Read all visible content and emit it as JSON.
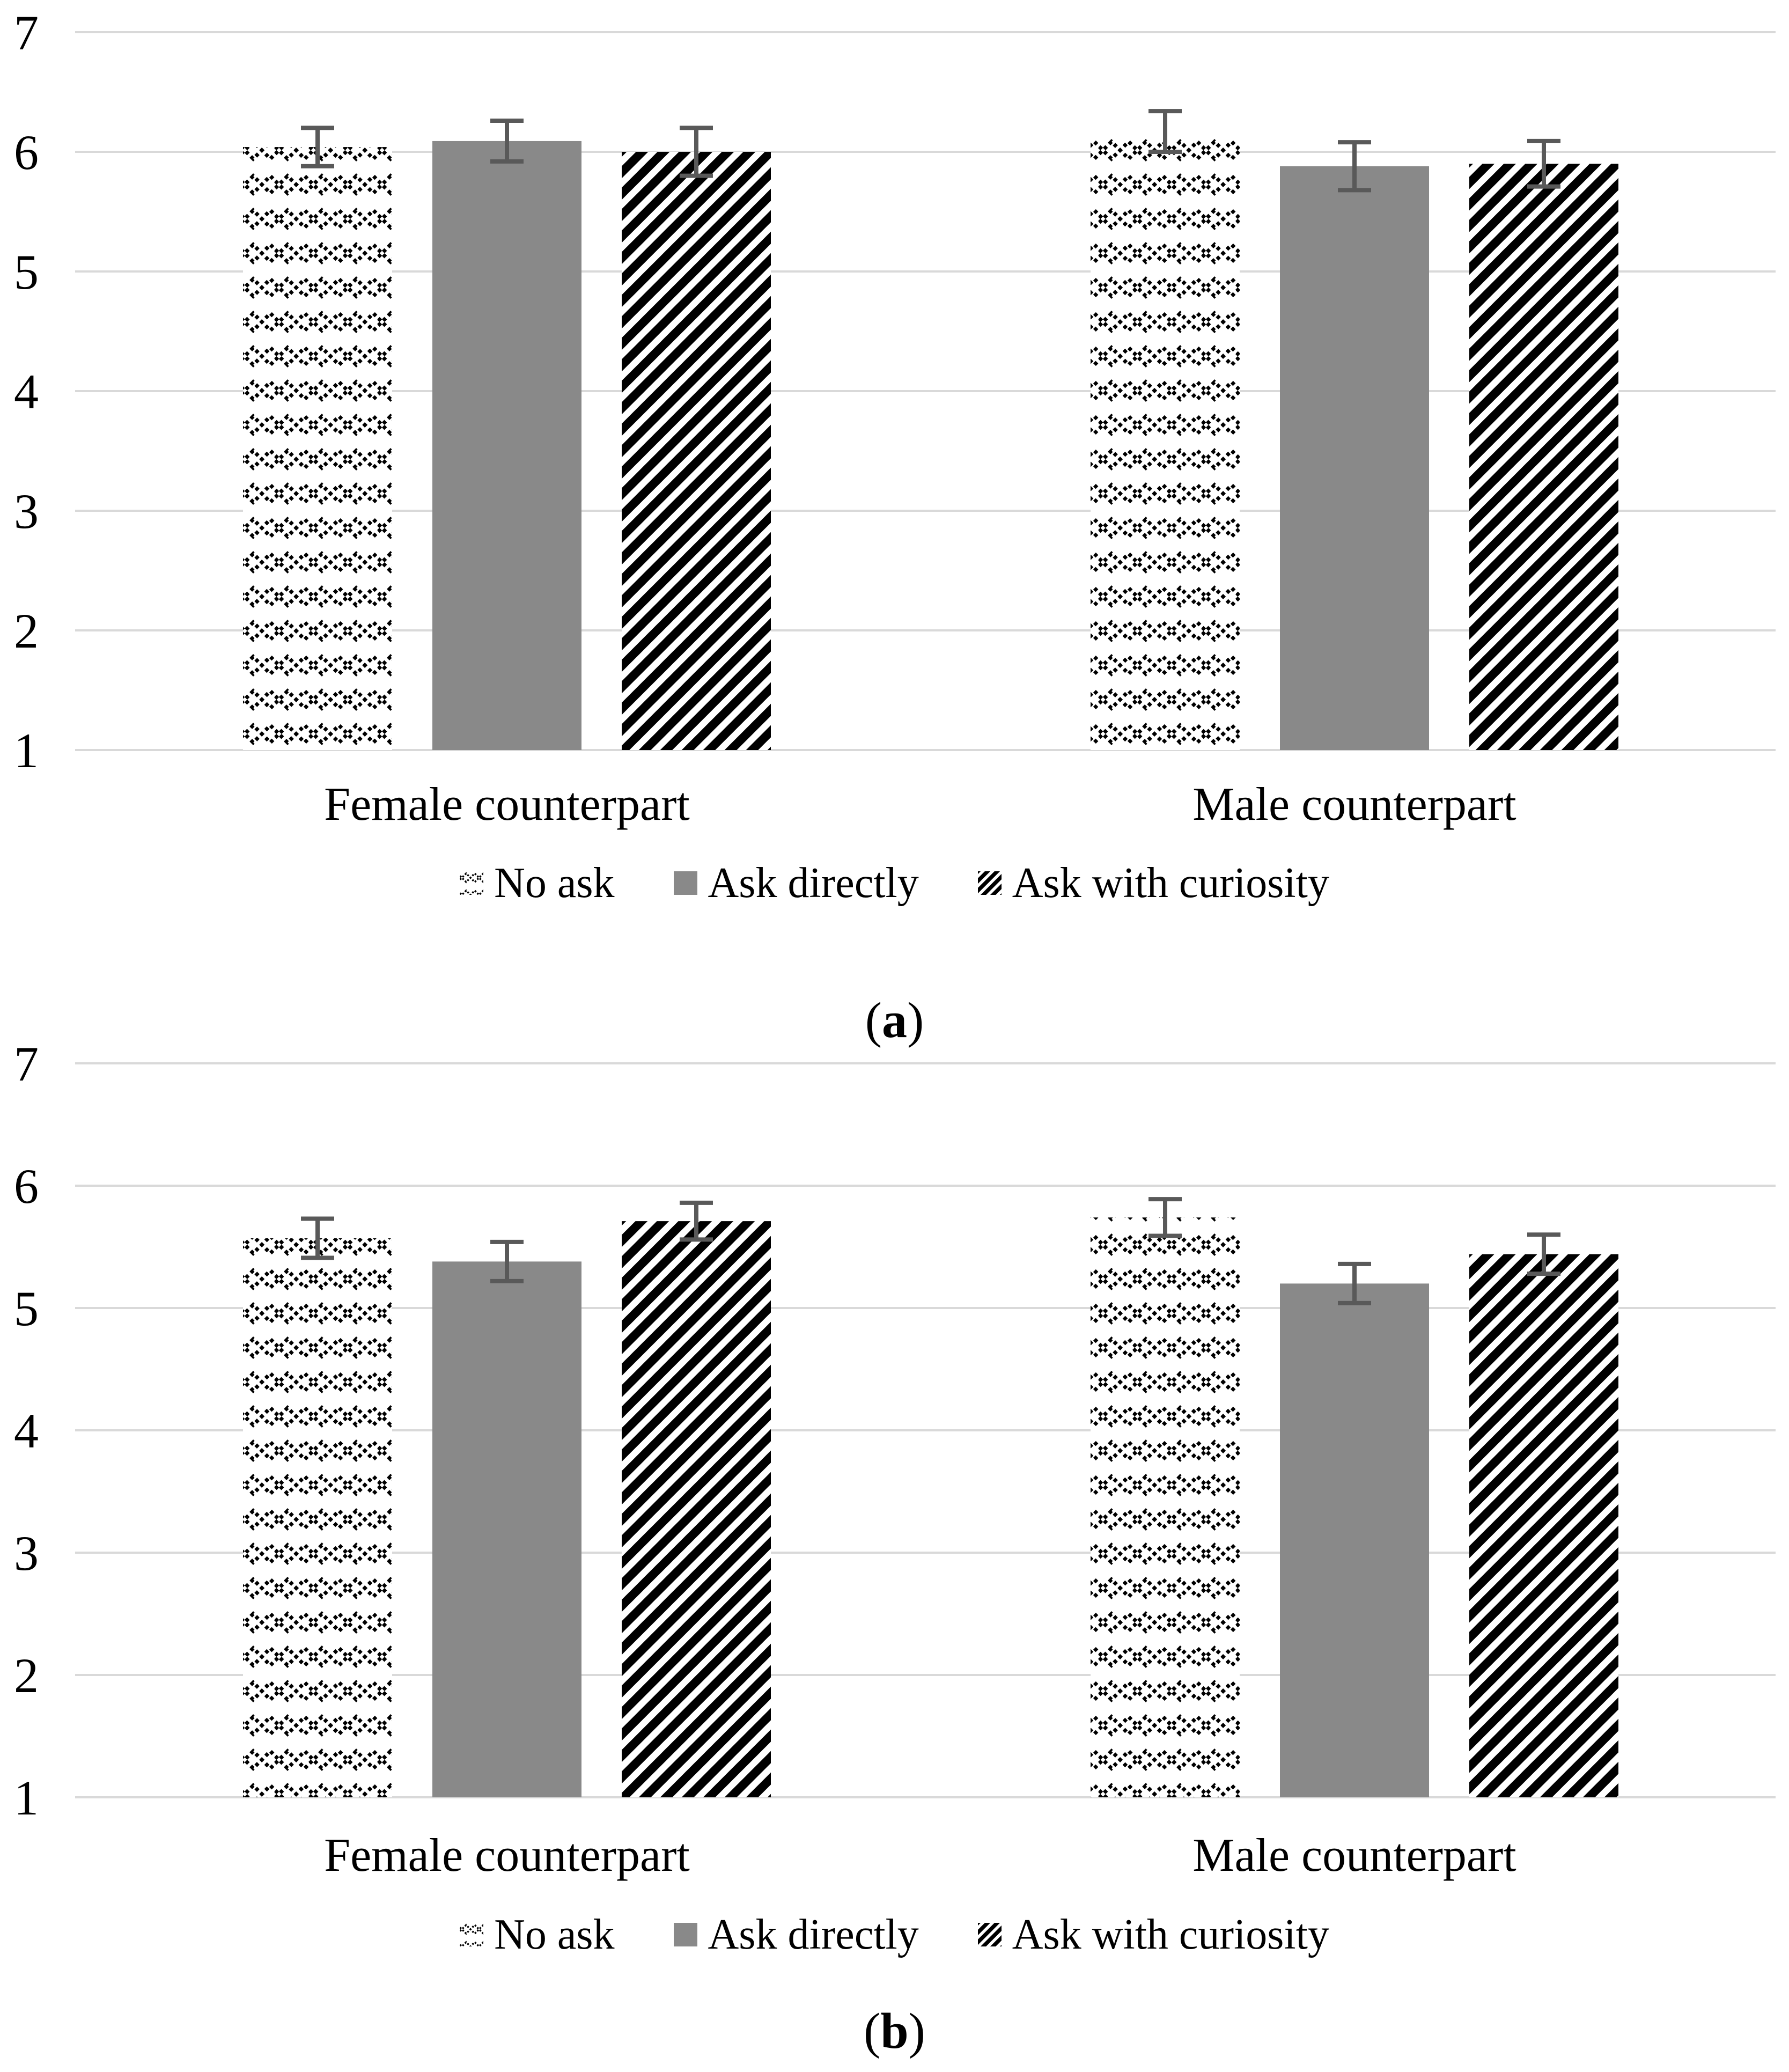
{
  "figure": {
    "background": "#ffffff",
    "colors": {
      "solid_bar": "#898989",
      "error_bar": "#595959",
      "gridline": "#d9d9d9",
      "text": "#000000",
      "pattern_ink": "#000000"
    },
    "legend": {
      "position": "bottom",
      "items": [
        {
          "label": "No ask",
          "swatch": "weave"
        },
        {
          "label": "Ask directly",
          "swatch": "solid"
        },
        {
          "label": "Ask with curiosity",
          "swatch": "stripe"
        }
      ]
    }
  },
  "chart_data": [
    {
      "id": "a",
      "type": "bar",
      "caption": {
        "open": "(",
        "letter": "a",
        "close": ")"
      },
      "ylim": [
        1,
        7
      ],
      "yticks": [
        7,
        6,
        5,
        4,
        3,
        2,
        1
      ],
      "bar_base": 1,
      "grid": true,
      "categories": [
        "Female counterpart",
        "Male counterpart"
      ],
      "series": [
        {
          "name": "No ask",
          "pattern": "weave",
          "values": [
            6.04,
            6.17
          ],
          "errors": [
            0.16,
            0.17
          ]
        },
        {
          "name": "Ask directly",
          "pattern": "solid",
          "values": [
            6.09,
            5.88
          ],
          "errors": [
            0.17,
            0.2
          ]
        },
        {
          "name": "Ask with curiosity",
          "pattern": "stripe",
          "values": [
            6.0,
            5.9
          ],
          "errors": [
            0.2,
            0.19
          ]
        }
      ]
    },
    {
      "id": "b",
      "type": "bar",
      "caption": {
        "open": "(",
        "letter": "b",
        "close": ")"
      },
      "ylim": [
        1,
        7
      ],
      "yticks": [
        7,
        6,
        5,
        4,
        3,
        2,
        1
      ],
      "bar_base": 1,
      "grid": true,
      "categories": [
        "Female counterpart",
        "Male counterpart"
      ],
      "series": [
        {
          "name": "No ask",
          "pattern": "weave",
          "values": [
            5.57,
            5.74
          ],
          "errors": [
            0.16,
            0.15
          ]
        },
        {
          "name": "Ask directly",
          "pattern": "solid",
          "values": [
            5.38,
            5.2
          ],
          "errors": [
            0.16,
            0.16
          ]
        },
        {
          "name": "Ask with curiosity",
          "pattern": "stripe",
          "values": [
            5.71,
            5.44
          ],
          "errors": [
            0.15,
            0.16
          ]
        }
      ]
    }
  ]
}
